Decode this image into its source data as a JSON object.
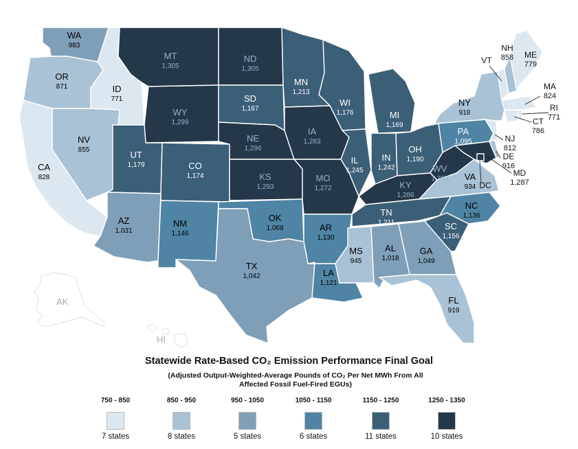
{
  "title_text": "Statewide Rate-Based CO₂ Emission  Performance Final Goal",
  "subtitle_line1": "(Adjusted Output-Weighted-Average Pounds of CO₂ Per Net MWh From All",
  "subtitle_line2": "Affected Fossil  Fuel-Fired EGUs)",
  "map_labels": {
    "alaska": "AK",
    "hawaii": "HI"
  },
  "legend": [
    {
      "range": "750 - 850",
      "count": "7 states",
      "color": "#dce7ef"
    },
    {
      "range": "850 - 950",
      "count": "8 states",
      "color": "#a9c2d5"
    },
    {
      "range": "950 - 1050",
      "count": "5 states",
      "color": "#7f9fb8"
    },
    {
      "range": "1050 - 1150",
      "count": "6 states",
      "color": "#4f84a5"
    },
    {
      "range": "1150 - 1250",
      "count": "11 states",
      "color": "#3b5f77"
    },
    {
      "range": "1250 - 1350",
      "count": "10 states",
      "color": "#24384a"
    }
  ],
  "states": [
    {
      "abbr": "WA",
      "value": "983",
      "color": "#7f9fb8"
    },
    {
      "abbr": "OR",
      "value": "871",
      "color": "#a9c2d5"
    },
    {
      "abbr": "CA",
      "value": "828",
      "color": "#dce7ef"
    },
    {
      "abbr": "ID",
      "value": "771",
      "color": "#dce7ef"
    },
    {
      "abbr": "NV",
      "value": "855",
      "color": "#a9c2d5"
    },
    {
      "abbr": "MT",
      "value": "1,305",
      "color": "#24384a"
    },
    {
      "abbr": "WY",
      "value": "1,299",
      "color": "#24384a"
    },
    {
      "abbr": "UT",
      "value": "1,179",
      "color": "#3b5f77"
    },
    {
      "abbr": "CO",
      "value": "1,174",
      "color": "#3b5f77"
    },
    {
      "abbr": "AZ",
      "value": "1,031",
      "color": "#7f9fb8"
    },
    {
      "abbr": "NM",
      "value": "1,146",
      "color": "#4f84a5"
    },
    {
      "abbr": "ND",
      "value": "1,305",
      "color": "#24384a"
    },
    {
      "abbr": "SD",
      "value": "1,167",
      "color": "#3b5f77"
    },
    {
      "abbr": "NE",
      "value": "1,296",
      "color": "#24384a"
    },
    {
      "abbr": "KS",
      "value": "1,293",
      "color": "#24384a"
    },
    {
      "abbr": "OK",
      "value": "1,068",
      "color": "#4f84a5"
    },
    {
      "abbr": "TX",
      "value": "1,042",
      "color": "#7f9fb8"
    },
    {
      "abbr": "MN",
      "value": "1,213",
      "color": "#3b5f77"
    },
    {
      "abbr": "IA",
      "value": "1,283",
      "color": "#24384a"
    },
    {
      "abbr": "MO",
      "value": "1,272",
      "color": "#24384a"
    },
    {
      "abbr": "AR",
      "value": "1,130",
      "color": "#4f84a5"
    },
    {
      "abbr": "LA",
      "value": "1,121",
      "color": "#4f84a5"
    },
    {
      "abbr": "WI",
      "value": "1,176",
      "color": "#3b5f77"
    },
    {
      "abbr": "IL",
      "value": "1,245",
      "color": "#3b5f77"
    },
    {
      "abbr": "MI",
      "value": "1,169",
      "color": "#3b5f77"
    },
    {
      "abbr": "IN",
      "value": "1,242",
      "color": "#3b5f77"
    },
    {
      "abbr": "OH",
      "value": "1,190",
      "color": "#3b5f77"
    },
    {
      "abbr": "KY",
      "value": "1,286",
      "color": "#24384a"
    },
    {
      "abbr": "TN",
      "value": "1,211",
      "color": "#3b5f77"
    },
    {
      "abbr": "MS",
      "value": "945",
      "color": "#a9c2d5"
    },
    {
      "abbr": "AL",
      "value": "1,018",
      "color": "#7f9fb8"
    },
    {
      "abbr": "GA",
      "value": "1,049",
      "color": "#7f9fb8"
    },
    {
      "abbr": "FL",
      "value": "919",
      "color": "#a9c2d5"
    },
    {
      "abbr": "SC",
      "value": "1,156",
      "color": "#3b5f77"
    },
    {
      "abbr": "NC",
      "value": "1,136",
      "color": "#4f84a5"
    },
    {
      "abbr": "VA",
      "value": "934",
      "color": "#a9c2d5"
    },
    {
      "abbr": "WV",
      "value": "1,305",
      "color": "#24384a"
    },
    {
      "abbr": "MD",
      "value": "1,287",
      "color": "#24384a"
    },
    {
      "abbr": "DE",
      "value": "916",
      "color": "#a9c2d5"
    },
    {
      "abbr": "DC",
      "value": "",
      "color": "#24384a"
    },
    {
      "abbr": "PA",
      "value": "1,095",
      "color": "#4f84a5"
    },
    {
      "abbr": "NJ",
      "value": "812",
      "color": "#dce7ef"
    },
    {
      "abbr": "NY",
      "value": "918",
      "color": "#a9c2d5"
    },
    {
      "abbr": "CT",
      "value": "786",
      "color": "#dce7ef"
    },
    {
      "abbr": "RI",
      "value": "771",
      "color": "#dce7ef"
    },
    {
      "abbr": "MA",
      "value": "824",
      "color": "#dce7ef"
    },
    {
      "abbr": "VT",
      "value": "",
      "color": "#dce7ef"
    },
    {
      "abbr": "NH",
      "value": "858",
      "color": "#a9c2d5"
    },
    {
      "abbr": "ME",
      "value": "779",
      "color": "#dce7ef"
    }
  ]
}
